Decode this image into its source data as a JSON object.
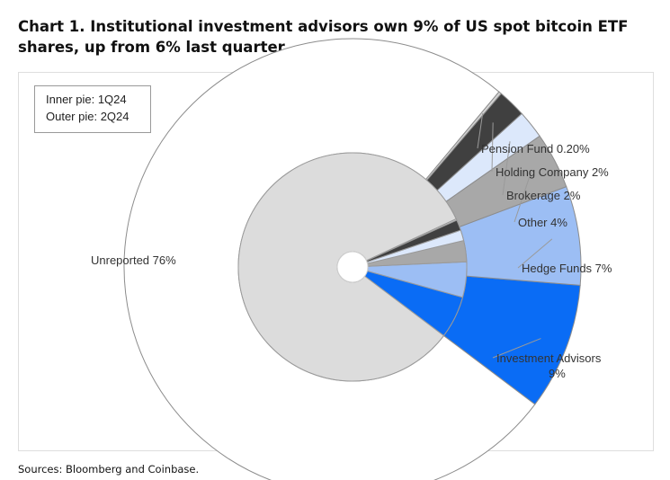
{
  "title": "Chart 1. Institutional investment advisors own 9% of US spot bitcoin ETF shares, up from 6% last quarter.",
  "source": "Sources: Bloomberg and Coinbase.",
  "legend": {
    "inner": "Inner pie: 1Q24",
    "outer": "Outer pie: 2Q24"
  },
  "colors": {
    "Investment Advisors": "#0a6cf5",
    "Hedge Funds": "#9cbef4",
    "Other": "#a8a8a8",
    "Brokerage": "#dce8fb",
    "Holding Company": "#404040",
    "Pension Fund": "#d4d4d4",
    "Unreported": "#dcdcdc"
  },
  "chart_data": {
    "type": "pie",
    "subtype": "nested-donut",
    "rings": [
      {
        "name": "2Q24",
        "position": "outer",
        "slices": [
          {
            "label": "Investment Advisors",
            "value": 9
          },
          {
            "label": "Hedge Funds",
            "value": 7
          },
          {
            "label": "Other",
            "value": 4
          },
          {
            "label": "Brokerage",
            "value": 2
          },
          {
            "label": "Holding Company",
            "value": 2
          },
          {
            "label": "Pension Fund",
            "value": 0.2
          },
          {
            "label": "Unreported",
            "value": 75.8
          }
        ]
      },
      {
        "name": "1Q24",
        "position": "inner",
        "slices": [
          {
            "label": "Investment Advisors",
            "value": 6
          },
          {
            "label": "Hedge Funds",
            "value": 5
          },
          {
            "label": "Other",
            "value": 3
          },
          {
            "label": "Brokerage",
            "value": 1.5
          },
          {
            "label": "Holding Company",
            "value": 1.5
          },
          {
            "label": "Pension Fund",
            "value": 0.2
          },
          {
            "label": "Unreported",
            "value": 82.8
          }
        ]
      }
    ],
    "labels": [
      {
        "category": "Pension Fund",
        "text": "Pension Fund 0.20%"
      },
      {
        "category": "Holding Company",
        "text": "Holding Company 2%"
      },
      {
        "category": "Brokerage",
        "text": "Brokerage 2%"
      },
      {
        "category": "Other",
        "text": "Other 4%"
      },
      {
        "category": "Hedge Funds",
        "text": "Hedge Funds 7%"
      },
      {
        "category": "Investment Advisors",
        "text": "Investment Advisors",
        "text2": "9%"
      },
      {
        "category": "Unreported",
        "text": "Unreported 76%"
      }
    ]
  }
}
